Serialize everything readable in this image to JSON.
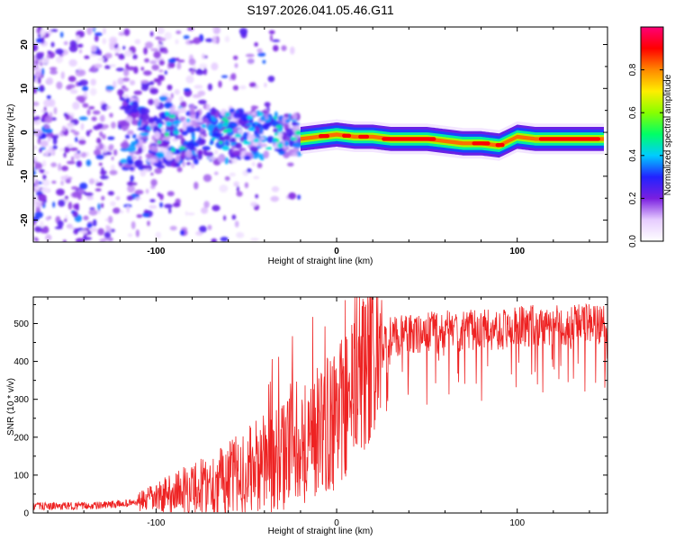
{
  "title": "S197.2026.041.05.46.G11",
  "chart_data": [
    {
      "type": "heatmap",
      "xlabel": "Height of straight line (km)",
      "ylabel": "Frequency (Hz)",
      "xlim": [
        -168,
        150
      ],
      "ylim": [
        -25,
        24
      ],
      "xticks": [
        -100,
        0,
        100
      ],
      "yticks": [
        -20,
        -10,
        0,
        10,
        20
      ],
      "colorbar": {
        "label": "Normalized spectral amplitude",
        "range": [
          0,
          1
        ],
        "ticks": [
          "0.0",
          "0.2",
          "0.4",
          "0.6",
          "0.8"
        ],
        "stops": [
          "#ffffff",
          "#e6ccff",
          "#7a1fe0",
          "#2222ff",
          "#00ccff",
          "#00ff66",
          "#88ff00",
          "#ffee00",
          "#ff8800",
          "#ff0000",
          "#ff0077"
        ]
      },
      "ridge": {
        "description": "dominant frequency band",
        "x": [
          -20,
          -10,
          0,
          10,
          20,
          30,
          50,
          70,
          80,
          90,
          95,
          100,
          110,
          130,
          148
        ],
        "frequency": [
          -1.5,
          -1,
          -0.5,
          -1,
          -1,
          -1.5,
          -1.5,
          -2.5,
          -2.5,
          -3,
          -2,
          -1,
          -1.5,
          -1.5,
          -1.5
        ],
        "peak_amplitude": 0.9
      },
      "noise_region": {
        "x": [
          -168,
          -20
        ],
        "amplitude": "0.1-0.45"
      }
    },
    {
      "type": "line",
      "xlabel": "Height of straight line (km)",
      "ylabel": "SNR (10 * v/v)",
      "xlim": [
        -168,
        150
      ],
      "ylim": [
        0,
        570
      ],
      "xticks": [
        -100,
        0,
        100
      ],
      "yticks": [
        0,
        100,
        200,
        300,
        400,
        500
      ],
      "color": "#ee2222",
      "series": [
        {
          "name": "SNR",
          "x": [
            -168,
            -150,
            -130,
            -110,
            -100,
            -90,
            -80,
            -70,
            -60,
            -50,
            -40,
            -30,
            -20,
            -15,
            -10,
            -5,
            0,
            5,
            10,
            15,
            20,
            25,
            30,
            40,
            50,
            60,
            70,
            80,
            90,
            100,
            110,
            120,
            130,
            140,
            150
          ],
          "values": [
            18,
            18,
            20,
            28,
            40,
            55,
            65,
            75,
            90,
            110,
            130,
            150,
            180,
            200,
            215,
            230,
            250,
            280,
            320,
            370,
            420,
            455,
            465,
            470,
            475,
            480,
            480,
            485,
            485,
            490,
            495,
            495,
            495,
            500,
            500
          ]
        }
      ]
    }
  ]
}
